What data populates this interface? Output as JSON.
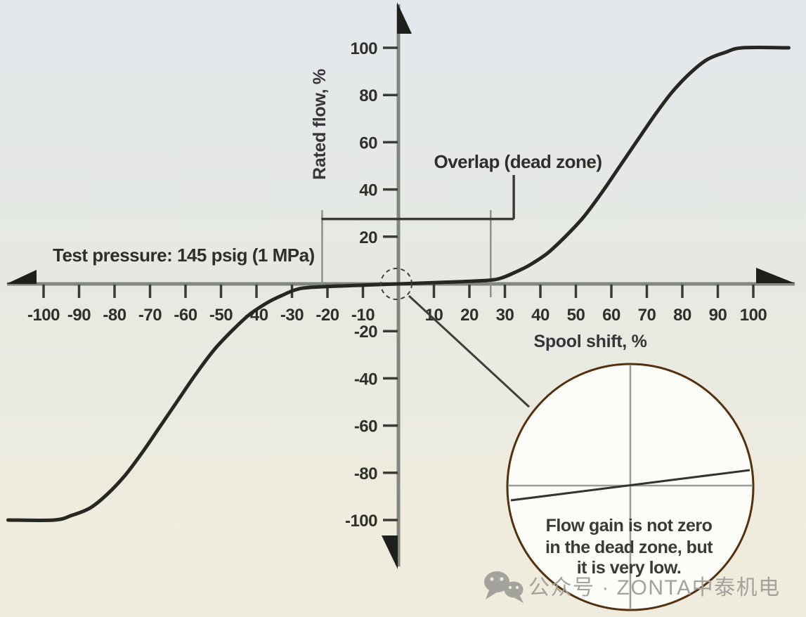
{
  "figure": {
    "background_top": "#e3e8ec",
    "background_middle": "#e6e9e2",
    "background_bottom": "#f0ecdd"
  },
  "chart_data": {
    "type": "line",
    "title": "",
    "xlabel": "Spool shift, %",
    "ylabel": "Rated flow, %",
    "xlim": [
      -110,
      112
    ],
    "ylim": [
      -112,
      112
    ],
    "grid": false,
    "legend": "none",
    "x_ticks": [
      -100,
      -90,
      -80,
      -70,
      -60,
      -50,
      -40,
      -30,
      -20,
      -10,
      10,
      20,
      30,
      40,
      50,
      60,
      70,
      80,
      90,
      100
    ],
    "y_ticks": [
      100,
      80,
      60,
      40,
      20,
      -20,
      -40,
      -60,
      -80,
      -100
    ],
    "series": [
      {
        "name": "rated-flow-vs-spool-shift",
        "color": "#262622",
        "points": [
          [
            -110,
            -100
          ],
          [
            -97,
            -100
          ],
          [
            -92,
            -98
          ],
          [
            -87,
            -95
          ],
          [
            -82,
            -89
          ],
          [
            -77,
            -81
          ],
          [
            -72,
            -71
          ],
          [
            -67,
            -60
          ],
          [
            -62,
            -49
          ],
          [
            -57,
            -38
          ],
          [
            -52,
            -28
          ],
          [
            -47,
            -20
          ],
          [
            -42,
            -13
          ],
          [
            -37,
            -8
          ],
          [
            -33,
            -5
          ],
          [
            -29,
            -2.5
          ],
          [
            -25,
            -1.5
          ],
          [
            -15,
            -0.8
          ],
          [
            0,
            0
          ],
          [
            15,
            0.8
          ],
          [
            25,
            1.5
          ],
          [
            29,
            2.5
          ],
          [
            33,
            5
          ],
          [
            37,
            8
          ],
          [
            42,
            13
          ],
          [
            47,
            20
          ],
          [
            52,
            28
          ],
          [
            57,
            38
          ],
          [
            62,
            49
          ],
          [
            67,
            60
          ],
          [
            72,
            71
          ],
          [
            77,
            81
          ],
          [
            82,
            89
          ],
          [
            87,
            95
          ],
          [
            92,
            98
          ],
          [
            97,
            100
          ],
          [
            110,
            100
          ]
        ]
      }
    ],
    "dead_zone": {
      "from_percent": -21.5,
      "to_percent": 26,
      "bracket_y_percent": 27.5,
      "bracket_right_end_percent": 32.5
    },
    "annotations": {
      "overlap_label": "Overlap (dead zone)",
      "test_pressure_label": "Test pressure: 145 psig (1 MPa)"
    }
  },
  "inset": {
    "caption_line1": "Flow gain is not zero",
    "caption_line2": "in the dead zone, but",
    "caption_line3": "it is very low.",
    "border_color": "#53300e",
    "fill_color": "#fcfcf8"
  },
  "watermark": {
    "icon": "wechat-icon",
    "text": "公众号 · ZONTA中泰机电",
    "color": "#a3a29c"
  }
}
